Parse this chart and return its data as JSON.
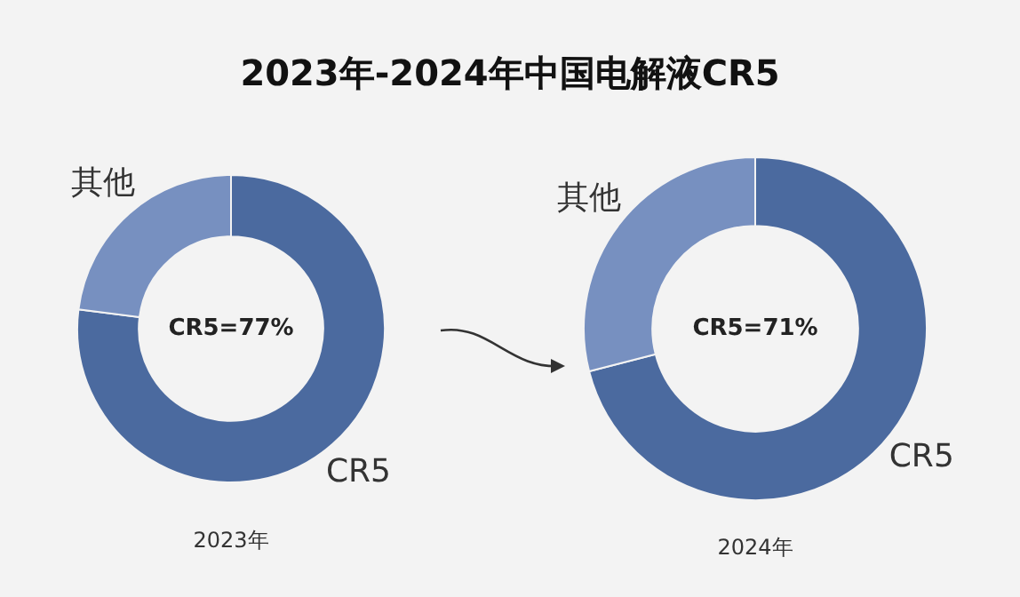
{
  "chart_data": [
    {
      "type": "donut",
      "title": "2023年-2024年中国电解液CR5",
      "subtitle": "2023年",
      "categories": [
        "CR5",
        "其他"
      ],
      "values": [
        77,
        23
      ],
      "colors": [
        "#4b6a9f",
        "#7790c0"
      ],
      "annotations": [
        "CR5=77%"
      ],
      "legend": false
    },
    {
      "type": "donut",
      "subtitle": "2024年",
      "categories": [
        "CR5",
        "其他"
      ],
      "values": [
        71,
        29
      ],
      "colors": [
        "#4b6a9f",
        "#7790c0"
      ],
      "annotations": [
        "CR5=71%"
      ],
      "legend": false
    }
  ]
}
